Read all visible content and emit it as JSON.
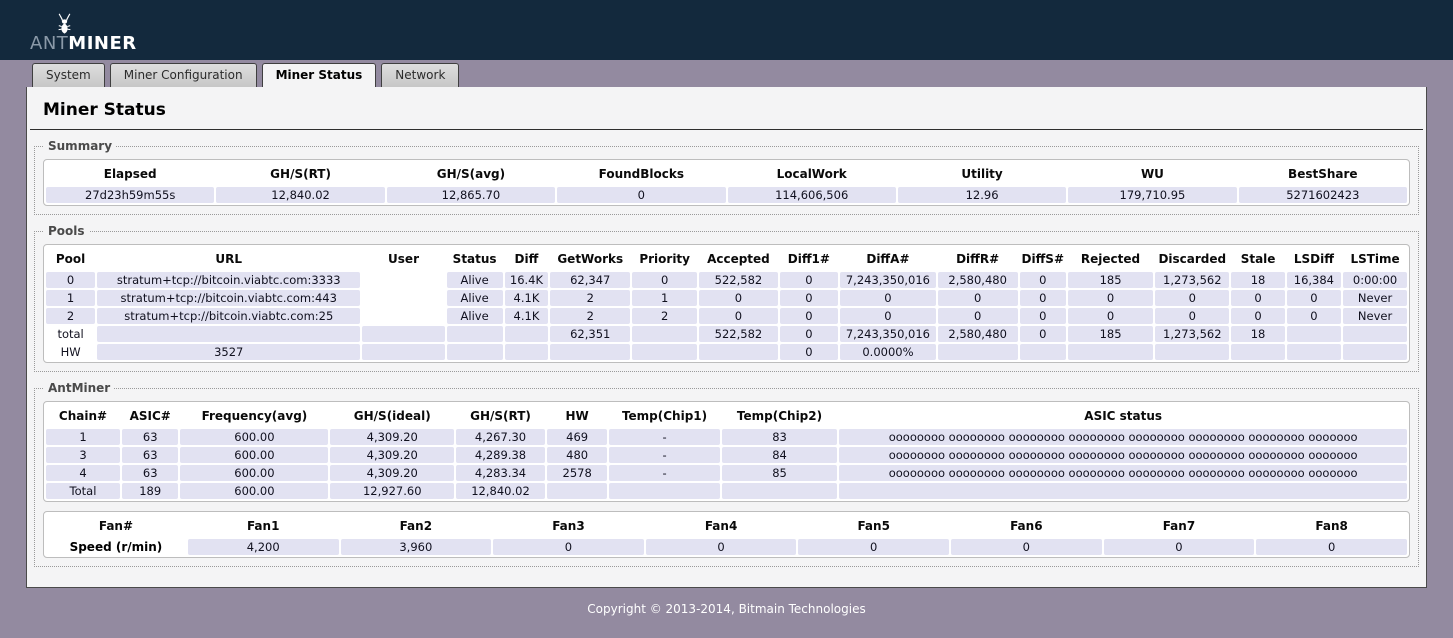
{
  "logo": {
    "prefix": "ANT",
    "suffix": "MINER"
  },
  "tabs": [
    {
      "label": "System",
      "active": false
    },
    {
      "label": "Miner Configuration",
      "active": false
    },
    {
      "label": "Miner Status",
      "active": true
    },
    {
      "label": "Network",
      "active": false
    }
  ],
  "page_title": "Miner Status",
  "summary": {
    "legend": "Summary",
    "headers": [
      "Elapsed",
      "GH/S(RT)",
      "GH/S(avg)",
      "FoundBlocks",
      "LocalWork",
      "Utility",
      "WU",
      "BestShare"
    ],
    "rows": [
      [
        "27d23h59m55s",
        "12,840.02",
        "12,865.70",
        "0",
        "114,606,506",
        "12.96",
        "179,710.95",
        "5271602423"
      ]
    ]
  },
  "pools": {
    "legend": "Pools",
    "headers": [
      "Pool",
      "URL",
      "User",
      "Status",
      "Diff",
      "GetWorks",
      "Priority",
      "Accepted",
      "Diff1#",
      "DiffA#",
      "DiffR#",
      "DiffS#",
      "Rejected",
      "Discarded",
      "Stale",
      "LSDiff",
      "LSTime"
    ],
    "rows": [
      [
        "0",
        "stratum+tcp://bitcoin.viabtc.com:3333",
        "",
        "Alive",
        "16.4K",
        "62,347",
        "0",
        "522,582",
        "0",
        "7,243,350,016",
        "2,580,480",
        "0",
        "185",
        "1,273,562",
        "18",
        "16,384",
        "0:00:00"
      ],
      [
        "1",
        "stratum+tcp://bitcoin.viabtc.com:443",
        "",
        "Alive",
        "4.1K",
        "2",
        "1",
        "0",
        "0",
        "0",
        "0",
        "0",
        "0",
        "0",
        "0",
        "0",
        "Never"
      ],
      [
        "2",
        "stratum+tcp://bitcoin.viabtc.com:25",
        "",
        "Alive",
        "4.1K",
        "2",
        "2",
        "0",
        "0",
        "0",
        "0",
        "0",
        "0",
        "0",
        "0",
        "0",
        "Never"
      ],
      [
        "total",
        "",
        "",
        "",
        "",
        "62,351",
        "",
        "522,582",
        "0",
        "7,243,350,016",
        "2,580,480",
        "0",
        "185",
        "1,273,562",
        "18",
        "",
        ""
      ],
      [
        "HW",
        "3527",
        "",
        "",
        "",
        "",
        "",
        "",
        "0",
        "0.0000%",
        "",
        "",
        "",
        "",
        "",
        "",
        ""
      ]
    ]
  },
  "antminer": {
    "legend": "AntMiner",
    "headers": [
      "Chain#",
      "ASIC#",
      "Frequency(avg)",
      "GH/S(ideal)",
      "GH/S(RT)",
      "HW",
      "Temp(Chip1)",
      "Temp(Chip2)",
      "ASIC status"
    ],
    "rows": [
      [
        "1",
        "63",
        "600.00",
        "4,309.20",
        "4,267.30",
        "469",
        "-",
        "83",
        "oooooooo oooooooo oooooooo oooooooo oooooooo oooooooo oooooooo ooooooo"
      ],
      [
        "3",
        "63",
        "600.00",
        "4,309.20",
        "4,289.38",
        "480",
        "-",
        "84",
        "oooooooo oooooooo oooooooo oooooooo oooooooo oooooooo oooooooo ooooooo"
      ],
      [
        "4",
        "63",
        "600.00",
        "4,309.20",
        "4,283.34",
        "2578",
        "-",
        "85",
        "oooooooo oooooooo oooooooo oooooooo oooooooo oooooooo oooooooo ooooooo"
      ],
      [
        "Total",
        "189",
        "600.00",
        "12,927.60",
        "12,840.02",
        "",
        "",
        "",
        ""
      ]
    ]
  },
  "fans": {
    "headers": [
      "Fan#",
      "Fan1",
      "Fan2",
      "Fan3",
      "Fan4",
      "Fan5",
      "Fan6",
      "Fan7",
      "Fan8"
    ],
    "rows": [
      [
        "Speed (r/min)",
        "4,200",
        "3,960",
        "0",
        "0",
        "0",
        "0",
        "0",
        "0"
      ]
    ]
  },
  "footer": {
    "copyright": "Copyright © 2013-2014, Bitmain Technologies"
  },
  "colors": {
    "header_navy": "#13293D",
    "page_purple": "#938AA0",
    "panel": "#F4F4F5",
    "cell_lavender": "#E2E2F2",
    "table_border": "#BDBDBD"
  }
}
